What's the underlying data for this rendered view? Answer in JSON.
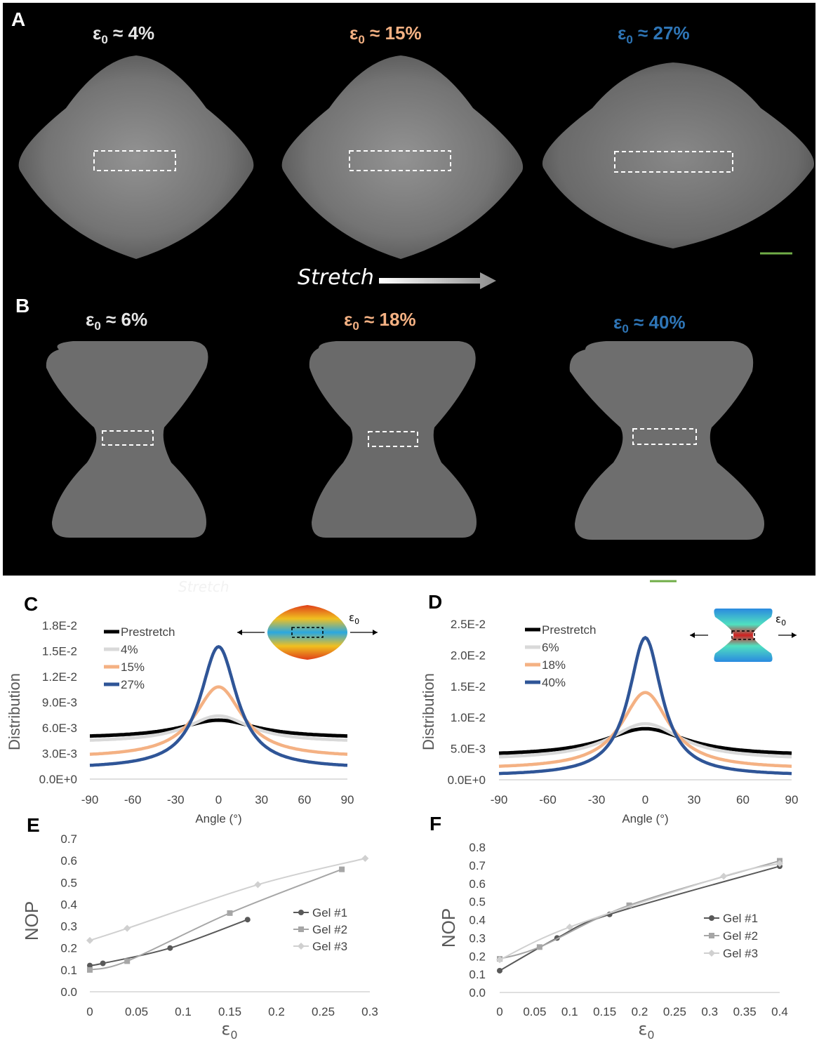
{
  "panels": {
    "A": "A",
    "B": "B",
    "C": "C",
    "D": "D",
    "E": "E",
    "F": "F"
  },
  "colors": {
    "white_label": "#e6e6e6",
    "orange_label": "#f4b183",
    "blue_label": "#2e75b6",
    "scale_bar": "#70ad47"
  },
  "panel_A": {
    "strain_labels": [
      {
        "prefix": "ε",
        "sub": "0",
        "value": " ≈ 4%",
        "color": "white"
      },
      {
        "prefix": "ε",
        "sub": "0",
        "value": " ≈ 15%",
        "color": "orange"
      },
      {
        "prefix": "ε",
        "sub": "0",
        "value": " ≈ 27%",
        "color": "blue"
      }
    ],
    "stretch_label": "Stretch"
  },
  "panel_B": {
    "strain_labels": [
      {
        "prefix": "ε",
        "sub": "0",
        "value": " ≈ 6%",
        "color": "white"
      },
      {
        "prefix": "ε",
        "sub": "0",
        "value": " ≈ 18%",
        "color": "orange"
      },
      {
        "prefix": "ε",
        "sub": "0",
        "value": " ≈ 40%",
        "color": "blue"
      }
    ],
    "ghost_label": "Stretch"
  },
  "chart_data": [
    {
      "id": "C",
      "type": "line",
      "ylabel": "Distribution",
      "xlabel": "Angle (°)",
      "xlim": [
        -90,
        90
      ],
      "ylim": [
        0,
        0.018
      ],
      "xticks": [
        "-90",
        "-60",
        "-30",
        "0",
        "30",
        "60",
        "90"
      ],
      "yticks": [
        "0.0E+0",
        "3.0E-3",
        "6.0E-3",
        "9.0E-3",
        "1.2E-2",
        "1.5E-2",
        "1.8E-2"
      ],
      "inset_label": "ε0",
      "series": [
        {
          "name": "Prestretch",
          "color": "#000000",
          "base": 0.0048,
          "peak": 0.0069,
          "width": 40
        },
        {
          "name": "4%",
          "color": "#d9d9d9",
          "base": 0.0043,
          "peak": 0.0074,
          "width": 33
        },
        {
          "name": "15%",
          "color": "#f4b183",
          "base": 0.0025,
          "peak": 0.0108,
          "width": 25
        },
        {
          "name": "27%",
          "color": "#2f5597",
          "base": 0.0012,
          "peak": 0.0155,
          "width": 19
        }
      ]
    },
    {
      "id": "D",
      "type": "line",
      "ylabel": "Distribution",
      "xlabel": "Angle (°)",
      "xlim": [
        -90,
        90
      ],
      "ylim": [
        0,
        0.025
      ],
      "xticks": [
        "-90",
        "-60",
        "-30",
        "0",
        "30",
        "60",
        "90"
      ],
      "yticks": [
        "0.0E+0",
        "5.0E-3",
        "1.0E-2",
        "1.5E-2",
        "2.0E-2",
        "2.5E-2"
      ],
      "inset_label": "ε0",
      "series": [
        {
          "name": "Prestretch",
          "color": "#000000",
          "base": 0.0038,
          "peak": 0.0082,
          "width": 38
        },
        {
          "name": "6%",
          "color": "#d9d9d9",
          "base": 0.0032,
          "peak": 0.009,
          "width": 33
        },
        {
          "name": "18%",
          "color": "#f4b183",
          "base": 0.0017,
          "peak": 0.014,
          "width": 22
        },
        {
          "name": "40%",
          "color": "#2f5597",
          "base": 0.0006,
          "peak": 0.0228,
          "width": 15
        }
      ]
    },
    {
      "id": "E",
      "type": "line",
      "ylabel": "NOP",
      "xlabel": "ε0",
      "xlim": [
        0,
        0.3
      ],
      "ylim": [
        0,
        0.7
      ],
      "xticks": [
        "0",
        "0.05",
        "0.1",
        "0.15",
        "0.2",
        "0.25",
        "0.3"
      ],
      "yticks": [
        "0.0",
        "0.1",
        "0.2",
        "0.3",
        "0.4",
        "0.5",
        "0.6",
        "0.7"
      ],
      "series": [
        {
          "name": "Gel #1",
          "color": "#595959",
          "marker": "circle",
          "x": [
            0,
            0.014,
            0.086,
            0.169
          ],
          "y": [
            0.12,
            0.13,
            0.2,
            0.33
          ]
        },
        {
          "name": "Gel #2",
          "color": "#a6a6a6",
          "marker": "square",
          "x": [
            0,
            0.04,
            0.15,
            0.27
          ],
          "y": [
            0.1,
            0.14,
            0.36,
            0.56
          ]
        },
        {
          "name": "Gel #3",
          "color": "#d0d0d0",
          "marker": "diamond",
          "x": [
            0,
            0.04,
            0.18,
            0.295
          ],
          "y": [
            0.235,
            0.29,
            0.49,
            0.61
          ]
        }
      ]
    },
    {
      "id": "F",
      "type": "line",
      "ylabel": "NOP",
      "xlabel": "ε0",
      "xlim": [
        0,
        0.4
      ],
      "ylim": [
        0,
        0.8
      ],
      "xticks": [
        "0",
        "0.05",
        "0.1",
        "0.15",
        "0.2",
        "0.25",
        "0.3",
        "0.35",
        "0.4"
      ],
      "yticks": [
        "0.0",
        "0.1",
        "0.2",
        "0.3",
        "0.4",
        "0.5",
        "0.6",
        "0.7",
        "0.8"
      ],
      "series": [
        {
          "name": "Gel #1",
          "color": "#595959",
          "marker": "circle",
          "x": [
            0,
            0.082,
            0.157,
            0.4
          ],
          "y": [
            0.12,
            0.3,
            0.43,
            0.695
          ]
        },
        {
          "name": "Gel #2",
          "color": "#a6a6a6",
          "marker": "square",
          "x": [
            0,
            0.057,
            0.185,
            0.4
          ],
          "y": [
            0.185,
            0.25,
            0.48,
            0.725
          ]
        },
        {
          "name": "Gel #3",
          "color": "#d0d0d0",
          "marker": "diamond",
          "x": [
            0,
            0.1,
            0.32,
            0.4
          ],
          "y": [
            0.18,
            0.36,
            0.64,
            0.71
          ]
        }
      ]
    }
  ]
}
